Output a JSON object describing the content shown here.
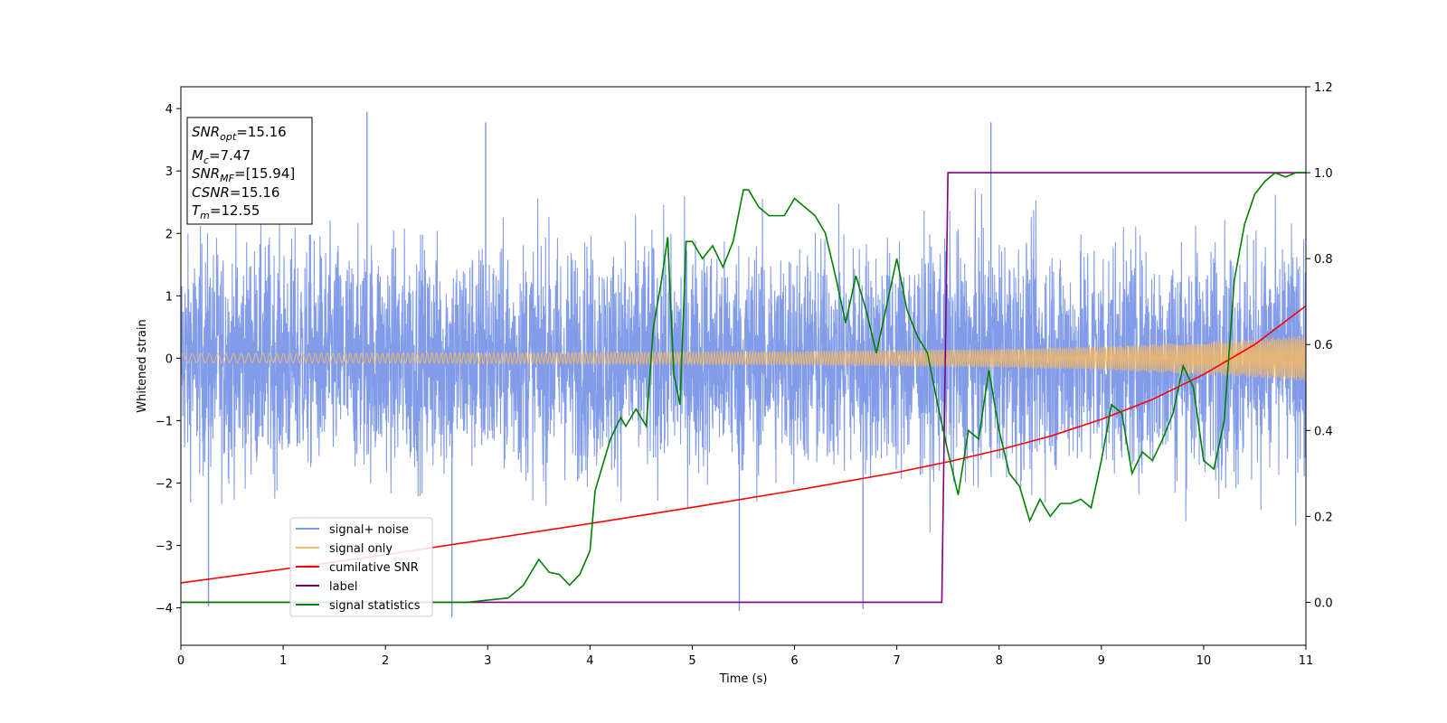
{
  "chart_data": {
    "type": "line",
    "xlabel": "Time (s)",
    "ylabel": "Whitened strain",
    "xlim": [
      0,
      11
    ],
    "ylim": [
      -4.6,
      4.35
    ],
    "y2lim": [
      -0.1,
      1.2
    ],
    "grid": false,
    "x_ticks": [
      0,
      1,
      2,
      3,
      4,
      5,
      6,
      7,
      8,
      9,
      10,
      11
    ],
    "y_ticks": [
      4,
      3,
      2,
      1,
      0,
      -1,
      -2,
      -3,
      -4
    ],
    "y_tick_labels": [
      "4",
      "3",
      "2",
      "1",
      "0",
      "−1",
      "−2",
      "−3",
      "−4"
    ],
    "y2_ticks": [
      1.2,
      1.0,
      0.8,
      0.6,
      0.4,
      0.2,
      0.0
    ],
    "y2_tick_labels": [
      "1.2",
      "1.0",
      "0.8",
      "0.6",
      "0.4",
      "0.2",
      "0.0"
    ],
    "legend_position": "lower-left",
    "annotation": {
      "lines": [
        {
          "base": "SNR",
          "sub": "opt",
          "value": "=15.16"
        },
        {
          "base": "M",
          "sub": "c",
          "value": "=7.47"
        },
        {
          "base": "SNR",
          "sub": "MF",
          "value": "=[15.94]"
        },
        {
          "base": "CSNR",
          "sub": "",
          "value": "=15.16"
        },
        {
          "base": "T",
          "sub": "m",
          "value": "=12.55"
        }
      ]
    },
    "series": [
      {
        "name": "signal+ noise",
        "axis": "left",
        "color": "#7b97e9",
        "description_values": {
          "envelope_typical": [
            -1.6,
            1.6
          ],
          "peaks": [
            [
              1.82,
              3.95
            ],
            [
              2.65,
              -4.15
            ],
            [
              5.46,
              -4.05
            ],
            [
              6.67,
              -4.02
            ],
            [
              0.27,
              -3.98
            ],
            [
              7.92,
              3.78
            ],
            [
              2.98,
              3.78
            ]
          ]
        }
      },
      {
        "name": "signal only",
        "axis": "left",
        "color": "#f5b964",
        "amplitude": {
          "x": [
            0,
            2,
            4,
            6,
            7,
            8,
            9,
            10,
            10.5,
            11
          ],
          "y": [
            0.07,
            0.08,
            0.09,
            0.11,
            0.13,
            0.15,
            0.19,
            0.26,
            0.31,
            0.37
          ]
        }
      },
      {
        "name": "cumilative SNR",
        "axis": "left",
        "color": "#ff0000",
        "x": [
          0,
          1,
          2,
          3,
          4,
          5,
          6,
          7,
          7.5,
          8,
          8.5,
          9,
          9.5,
          10,
          10.5,
          11
        ],
        "y": [
          -3.6,
          -3.38,
          -3.15,
          -2.9,
          -2.65,
          -2.39,
          -2.12,
          -1.83,
          -1.66,
          -1.47,
          -1.25,
          -0.98,
          -0.66,
          -0.26,
          0.22,
          0.84
        ]
      },
      {
        "name": "label",
        "axis": "right",
        "color": "#800080",
        "x": [
          0,
          7.44,
          7.5,
          11
        ],
        "y": [
          0,
          0,
          1,
          1
        ]
      },
      {
        "name": "signal statistics",
        "axis": "right",
        "color": "#008000",
        "x": [
          0,
          2.8,
          3.0,
          3.2,
          3.35,
          3.5,
          3.6,
          3.7,
          3.8,
          3.9,
          4.0,
          4.05,
          4.1,
          4.2,
          4.3,
          4.35,
          4.45,
          4.55,
          4.62,
          4.7,
          4.76,
          4.82,
          4.88,
          4.94,
          5.0,
          5.1,
          5.2,
          5.3,
          5.4,
          5.5,
          5.55,
          5.65,
          5.75,
          5.9,
          6.0,
          6.1,
          6.2,
          6.3,
          6.4,
          6.5,
          6.6,
          6.7,
          6.8,
          6.9,
          7.0,
          7.1,
          7.2,
          7.3,
          7.4,
          7.5,
          7.6,
          7.7,
          7.8,
          7.9,
          8.0,
          8.1,
          8.2,
          8.3,
          8.4,
          8.5,
          8.6,
          8.7,
          8.8,
          8.9,
          9.0,
          9.1,
          9.2,
          9.3,
          9.4,
          9.5,
          9.6,
          9.7,
          9.8,
          9.9,
          10.0,
          10.1,
          10.2,
          10.3,
          10.4,
          10.5,
          10.6,
          10.7,
          10.8,
          10.9,
          11.0
        ],
        "y": [
          0,
          0.0,
          0.005,
          0.01,
          0.04,
          0.1,
          0.07,
          0.065,
          0.04,
          0.065,
          0.12,
          0.26,
          0.3,
          0.38,
          0.43,
          0.41,
          0.45,
          0.41,
          0.64,
          0.75,
          0.85,
          0.53,
          0.46,
          0.84,
          0.84,
          0.8,
          0.83,
          0.78,
          0.84,
          0.96,
          0.96,
          0.92,
          0.9,
          0.9,
          0.94,
          0.92,
          0.9,
          0.86,
          0.76,
          0.65,
          0.76,
          0.68,
          0.58,
          0.69,
          0.8,
          0.68,
          0.62,
          0.58,
          0.46,
          0.35,
          0.25,
          0.4,
          0.38,
          0.54,
          0.4,
          0.3,
          0.27,
          0.19,
          0.24,
          0.2,
          0.23,
          0.23,
          0.24,
          0.22,
          0.33,
          0.46,
          0.44,
          0.3,
          0.35,
          0.33,
          0.38,
          0.44,
          0.55,
          0.5,
          0.33,
          0.31,
          0.42,
          0.75,
          0.88,
          0.95,
          0.98,
          1.0,
          0.99,
          1.0,
          1.0
        ]
      }
    ]
  }
}
